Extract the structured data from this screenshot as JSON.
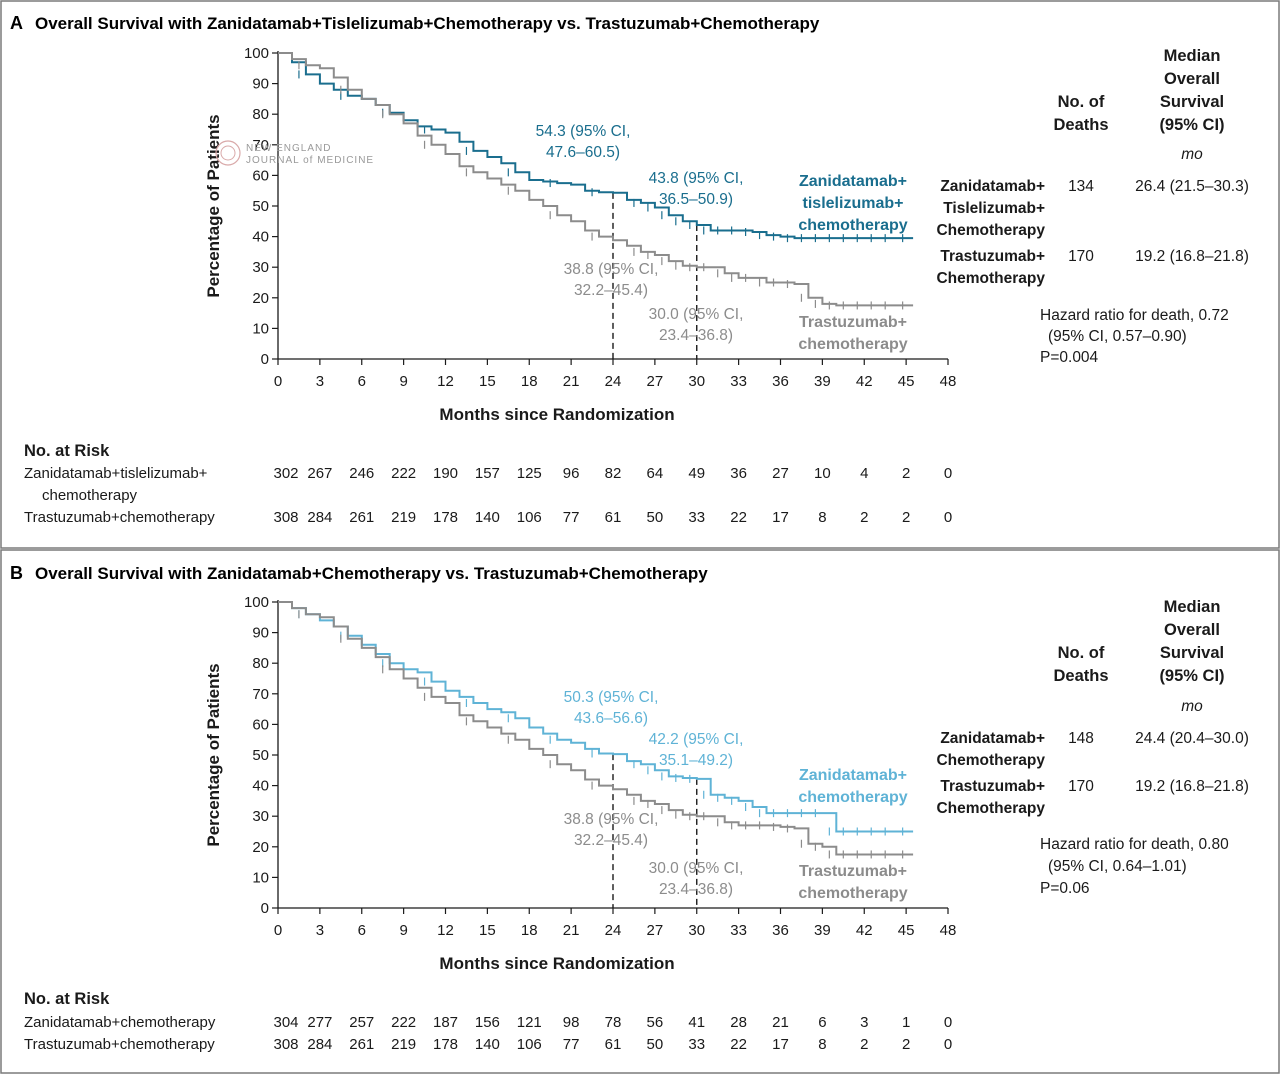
{
  "watermark": {
    "line1": "NEW ENGLAND",
    "line2": "JOURNAL of MEDICINE"
  },
  "chart_data": [
    {
      "type": "line",
      "panel_letter": "A",
      "title": "Overall Survival with Zanidatamab+Tislelizumab+Chemotherapy vs. Trastuzumab+Chemotherapy",
      "xlabel": "Months since Randomization",
      "ylabel": "Percentage of Patients",
      "xlim": [
        0,
        48
      ],
      "ylim": [
        0,
        100
      ],
      "xticks": [
        0,
        3,
        6,
        9,
        12,
        15,
        18,
        21,
        24,
        27,
        30,
        33,
        36,
        39,
        42,
        45,
        48
      ],
      "yticks": [
        0,
        10,
        20,
        30,
        40,
        50,
        60,
        70,
        80,
        90,
        100
      ],
      "series": [
        {
          "name": "Zanidatamab+ tislelizumab+ chemotherapy",
          "label_lines": [
            "Zanidatamab+",
            "tislelizumab+",
            "chemotherapy"
          ],
          "color": "#1a6e8e",
          "x": [
            0,
            1,
            2,
            3,
            4,
            5,
            6,
            7,
            8,
            9,
            10,
            11,
            12,
            13,
            14,
            15,
            16,
            17,
            18,
            19,
            20,
            21,
            22,
            23,
            24,
            25,
            26,
            27,
            28,
            29,
            30,
            31,
            32,
            33,
            34,
            35,
            36,
            37,
            38,
            39,
            40,
            41,
            42,
            43,
            44,
            45.5
          ],
          "y": [
            100,
            97,
            93,
            90,
            88,
            86,
            85,
            83,
            80.5,
            78,
            76,
            75,
            74,
            71,
            68,
            66,
            64,
            61,
            58.5,
            58,
            57.5,
            57,
            55,
            54.5,
            54.3,
            52,
            51,
            49.5,
            47,
            45,
            43.8,
            42,
            42,
            42,
            41.5,
            40.5,
            40,
            39.5,
            39.5,
            39.5,
            39.5,
            39.5,
            39.5,
            39.5,
            39.5,
            39.5
          ]
        },
        {
          "name": "Trastuzumab+ chemotherapy",
          "label_lines": [
            "Trastuzumab+",
            "chemotherapy"
          ],
          "color": "#8c8c8c",
          "x": [
            0,
            1,
            2,
            3,
            4,
            5,
            6,
            7,
            8,
            9,
            10,
            11,
            12,
            13,
            14,
            15,
            16,
            17,
            18,
            19,
            20,
            21,
            22,
            23,
            24,
            25,
            26,
            27,
            28,
            29,
            30,
            31,
            32,
            33,
            34,
            35,
            36,
            37,
            38,
            39,
            40,
            41,
            42,
            43,
            44,
            45.5
          ],
          "y": [
            100,
            98,
            96,
            95,
            92,
            88,
            85,
            83,
            80,
            77,
            73,
            70,
            67,
            63,
            61,
            59,
            57,
            55,
            52,
            50,
            47,
            45,
            42,
            40,
            38.8,
            37,
            35,
            34,
            32,
            30.5,
            30,
            30,
            28,
            26.5,
            26.5,
            25,
            25,
            24.5,
            20,
            18,
            17.5,
            17.5,
            17.5,
            17.5,
            17.5,
            17.5
          ]
        }
      ],
      "annotations": [
        {
          "lines": [
            "54.3 (95% CI,",
            "47.6–60.5)"
          ],
          "color": "#1a6e8e",
          "x": 24,
          "y": 54.3
        },
        {
          "lines": [
            "43.8 (95% CI,",
            "36.5–50.9)"
          ],
          "color": "#1a6e8e",
          "x": 30,
          "y": 43.8
        },
        {
          "lines": [
            "38.8 (95% CI,",
            "32.2–45.4)"
          ],
          "color": "#8c8c8c",
          "x": 24,
          "y": 38.8
        },
        {
          "lines": [
            "30.0 (95% CI,",
            "23.4–36.8)"
          ],
          "color": "#8c8c8c",
          "x": 30,
          "y": 30.0
        }
      ],
      "summary_table": {
        "col1_header": [
          "No. of",
          "Deaths"
        ],
        "col2_header": [
          "Median",
          "Overall",
          "Survival",
          "(95% CI)"
        ],
        "unit": "mo",
        "rows": [
          {
            "name_lines": [
              "Zanidatamab+",
              "Tislelizumab+",
              "Chemotherapy"
            ],
            "deaths": "134",
            "median": "26.4 (21.5–30.3)"
          },
          {
            "name_lines": [
              "Trastuzumab+",
              "Chemotherapy"
            ],
            "deaths": "170",
            "median": "19.2 (16.8–21.8)"
          }
        ],
        "hazard_lines": [
          "Hazard ratio for death, 0.72",
          "(95% CI, 0.57–0.90)",
          "P=0.004"
        ]
      },
      "at_risk": {
        "header": "No. at Risk",
        "rows": [
          {
            "label_lines": [
              "Zanidatamab+tislelizumab+",
              "chemotherapy"
            ],
            "values": [
              "302",
              "267",
              "246",
              "222",
              "190",
              "157",
              "125",
              "96",
              "82",
              "64",
              "49",
              "36",
              "27",
              "10",
              "4",
              "2",
              "0"
            ]
          },
          {
            "label_lines": [
              "Trastuzumab+chemotherapy"
            ],
            "values": [
              "308",
              "284",
              "261",
              "219",
              "178",
              "140",
              "106",
              "77",
              "61",
              "50",
              "33",
              "22",
              "17",
              "8",
              "2",
              "2",
              "0"
            ]
          }
        ]
      }
    },
    {
      "type": "line",
      "panel_letter": "B",
      "title": "Overall Survival with Zanidatamab+Chemotherapy vs. Trastuzumab+Chemotherapy",
      "xlabel": "Months since Randomization",
      "ylabel": "Percentage of Patients",
      "xlim": [
        0,
        48
      ],
      "ylim": [
        0,
        100
      ],
      "xticks": [
        0,
        3,
        6,
        9,
        12,
        15,
        18,
        21,
        24,
        27,
        30,
        33,
        36,
        39,
        42,
        45,
        48
      ],
      "yticks": [
        0,
        10,
        20,
        30,
        40,
        50,
        60,
        70,
        80,
        90,
        100
      ],
      "series": [
        {
          "name": "Zanidatamab+ chemotherapy",
          "label_lines": [
            "Zanidatamab+",
            "chemotherapy"
          ],
          "color": "#5fb3d6",
          "x": [
            0,
            1,
            2,
            3,
            4,
            5,
            6,
            7,
            8,
            9,
            10,
            11,
            12,
            13,
            14,
            15,
            16,
            17,
            18,
            19,
            20,
            21,
            22,
            23,
            24,
            25,
            26,
            27,
            28,
            29,
            30,
            31,
            32,
            33,
            34,
            35,
            36,
            37,
            38,
            39,
            40,
            41,
            42,
            43,
            44,
            45.5
          ],
          "y": [
            100,
            98,
            96,
            94,
            92,
            89,
            86,
            83,
            80,
            78,
            77,
            74,
            71,
            69,
            67,
            65,
            64,
            62,
            59,
            57,
            55,
            54,
            52,
            50.5,
            50.3,
            48,
            47,
            45,
            43,
            42.5,
            42.2,
            37,
            36,
            35,
            33,
            31,
            31,
            31,
            31,
            31,
            25,
            25,
            25,
            25,
            25,
            25
          ]
        },
        {
          "name": "Trastuzumab+ chemotherapy",
          "label_lines": [
            "Trastuzumab+",
            "chemotherapy"
          ],
          "color": "#8c8c8c",
          "x": [
            0,
            1,
            2,
            3,
            4,
            5,
            6,
            7,
            8,
            9,
            10,
            11,
            12,
            13,
            14,
            15,
            16,
            17,
            18,
            19,
            20,
            21,
            22,
            23,
            24,
            25,
            26,
            27,
            28,
            29,
            30,
            31,
            32,
            33,
            34,
            35,
            36,
            37,
            38,
            39,
            40,
            41,
            42,
            43,
            44,
            45.5
          ],
          "y": [
            100,
            98,
            96,
            95,
            92,
            88,
            85,
            82,
            78,
            75,
            72,
            69,
            67,
            63,
            61,
            59,
            57,
            55,
            52,
            50,
            47,
            45,
            42,
            40,
            38.8,
            37,
            35,
            34,
            32,
            30.5,
            30,
            30,
            28,
            27,
            27,
            27,
            26.5,
            26,
            21,
            20,
            17.5,
            17.5,
            17.5,
            17.5,
            17.5,
            17.5
          ]
        }
      ],
      "annotations": [
        {
          "lines": [
            "50.3 (95% CI,",
            "43.6–56.6)"
          ],
          "color": "#5fb3d6",
          "x": 24,
          "y": 50.3
        },
        {
          "lines": [
            "42.2 (95% CI,",
            "35.1–49.2)"
          ],
          "color": "#5fb3d6",
          "x": 30,
          "y": 42.2
        },
        {
          "lines": [
            "38.8 (95% CI,",
            "32.2–45.4)"
          ],
          "color": "#8c8c8c",
          "x": 24,
          "y": 38.8
        },
        {
          "lines": [
            "30.0 (95% CI,",
            "23.4–36.8)"
          ],
          "color": "#8c8c8c",
          "x": 30,
          "y": 30.0
        }
      ],
      "summary_table": {
        "col1_header": [
          "No. of",
          "Deaths"
        ],
        "col2_header": [
          "Median",
          "Overall",
          "Survival",
          "(95% CI)"
        ],
        "unit": "mo",
        "rows": [
          {
            "name_lines": [
              "Zanidatamab+",
              "Chemotherapy"
            ],
            "deaths": "148",
            "median": "24.4 (20.4–30.0)"
          },
          {
            "name_lines": [
              "Trastuzumab+",
              "Chemotherapy"
            ],
            "deaths": "170",
            "median": "19.2 (16.8–21.8)"
          }
        ],
        "hazard_lines": [
          "Hazard ratio for death, 0.80",
          "(95% CI, 0.64–1.01)",
          "P=0.06"
        ]
      },
      "at_risk": {
        "header": "No. at Risk",
        "rows": [
          {
            "label_lines": [
              "Zanidatamab+chemotherapy"
            ],
            "values": [
              "304",
              "277",
              "257",
              "222",
              "187",
              "156",
              "121",
              "98",
              "78",
              "56",
              "41",
              "28",
              "21",
              "6",
              "3",
              "1",
              "0"
            ]
          },
          {
            "label_lines": [
              "Trastuzumab+chemotherapy"
            ],
            "values": [
              "308",
              "284",
              "261",
              "219",
              "178",
              "140",
              "106",
              "77",
              "61",
              "50",
              "33",
              "22",
              "17",
              "8",
              "2",
              "2",
              "0"
            ]
          }
        ]
      }
    }
  ]
}
